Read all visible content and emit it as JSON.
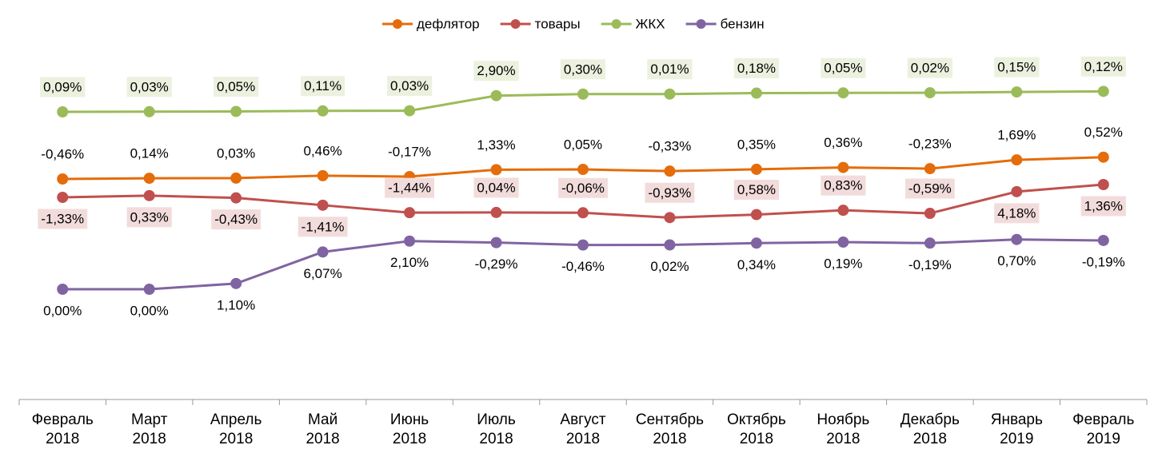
{
  "chart_data": {
    "type": "line",
    "categories": [
      "Февраль 2018",
      "Март 2018",
      "Апрель 2018",
      "Май 2018",
      "Июнь 2018",
      "Июль 2018",
      "Август 2018",
      "Сентябрь 2018",
      "Октябрь 2018",
      "Ноябрь 2018",
      "Декабрь 2018",
      "Январь 2019",
      "Февраль 2019"
    ],
    "series": [
      {
        "name": "дефлятор",
        "color": "#e46c0a",
        "values": [
          -0.46,
          0.14,
          0.03,
          0.46,
          -0.17,
          1.33,
          0.05,
          -0.33,
          0.35,
          0.36,
          -0.23,
          1.69,
          0.52
        ],
        "value_labels": [
          "-0,46%",
          "0,14%",
          "0,03%",
          "0,46%",
          "-0,17%",
          "1,33%",
          "0,05%",
          "-0,33%",
          "0,35%",
          "0,36%",
          "-0,23%",
          "1,69%",
          "0,52%"
        ]
      },
      {
        "name": "товары",
        "color": "#c0504d",
        "values": [
          -1.33,
          0.33,
          -0.43,
          -1.41,
          -1.44,
          0.04,
          -0.06,
          -0.93,
          0.58,
          0.83,
          -0.59,
          4.18,
          1.36
        ],
        "value_labels": [
          "-1,33%",
          "0,33%",
          "-0,43%",
          "-1,41%",
          "-1,44%",
          "0,04%",
          "-0,06%",
          "-0,93%",
          "0,58%",
          "0,83%",
          "-0,59%",
          "4,18%",
          "1,36%"
        ]
      },
      {
        "name": "ЖКХ",
        "color": "#9bbb59",
        "values": [
          0.09,
          0.03,
          0.05,
          0.11,
          0.03,
          2.9,
          0.3,
          0.01,
          0.18,
          0.05,
          0.02,
          0.15,
          0.12
        ],
        "value_labels": [
          "0,09%",
          "0,03%",
          "0,05%",
          "0,11%",
          "0,03%",
          "2,90%",
          "0,30%",
          "0,01%",
          "0,18%",
          "0,05%",
          "0,02%",
          "0,15%",
          "0,12%"
        ]
      },
      {
        "name": "бензин",
        "color": "#8064a2",
        "values": [
          0,
          0,
          1.1,
          6.07,
          2.1,
          -0.29,
          -0.46,
          0.02,
          0.34,
          0.19,
          -0.19,
          0.7,
          -0.19
        ],
        "value_labels": [
          "0,00%",
          "0,00%",
          "1,10%",
          "6,07%",
          "2,10%",
          "-0,29%",
          "-0,46%",
          "0,02%",
          "0,34%",
          "0,19%",
          "-0,19%",
          "0,70%",
          "-0,19%"
        ]
      }
    ],
    "legend": "top"
  }
}
